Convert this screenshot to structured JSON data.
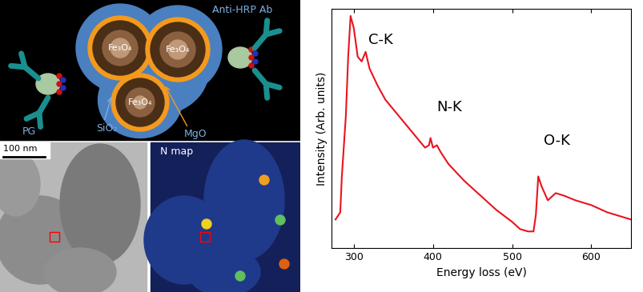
{
  "diagram": {
    "schematic": {
      "antibody": "Anti-HRP Ab",
      "core": "Fe₃O₄",
      "shell": "MgO",
      "coating": "SiO₂",
      "protein": "PG"
    },
    "tem": {
      "scale_bar": "100 nm"
    },
    "map": {
      "title": "N map"
    }
  },
  "chart_data": {
    "type": "line",
    "x_label": "Energy loss (eV)",
    "y_label": "Intensity (Arb. units)",
    "x": [
      277,
      283,
      285,
      287,
      290,
      293,
      296,
      300,
      305,
      310,
      315,
      320,
      330,
      340,
      350,
      360,
      370,
      380,
      390,
      395,
      397,
      400,
      405,
      410,
      420,
      440,
      460,
      480,
      500,
      510,
      520,
      527,
      530,
      533,
      537,
      545,
      555,
      565,
      580,
      600,
      620,
      640,
      650
    ],
    "values": [
      12,
      15,
      30,
      40,
      55,
      80,
      97,
      92,
      80,
      78,
      82,
      75,
      68,
      62,
      58,
      54,
      50,
      46,
      42,
      43,
      46,
      42,
      43,
      40,
      35,
      28,
      22,
      16,
      11,
      8,
      7,
      7,
      14,
      30,
      26,
      20,
      23,
      22,
      20,
      18,
      15,
      13,
      12
    ],
    "color": "#e8141e",
    "xlim": [
      272,
      650
    ],
    "xticks": [
      300,
      400,
      500,
      600
    ],
    "ylim": [
      0,
      100
    ],
    "yticks": [],
    "tick_labels": "x",
    "annotations": [
      {
        "text": "C-K",
        "x": 318,
        "y": 84
      },
      {
        "text": "N-K",
        "x": 405,
        "y": 56
      },
      {
        "text": "O-K",
        "x": 540,
        "y": 42
      }
    ]
  }
}
